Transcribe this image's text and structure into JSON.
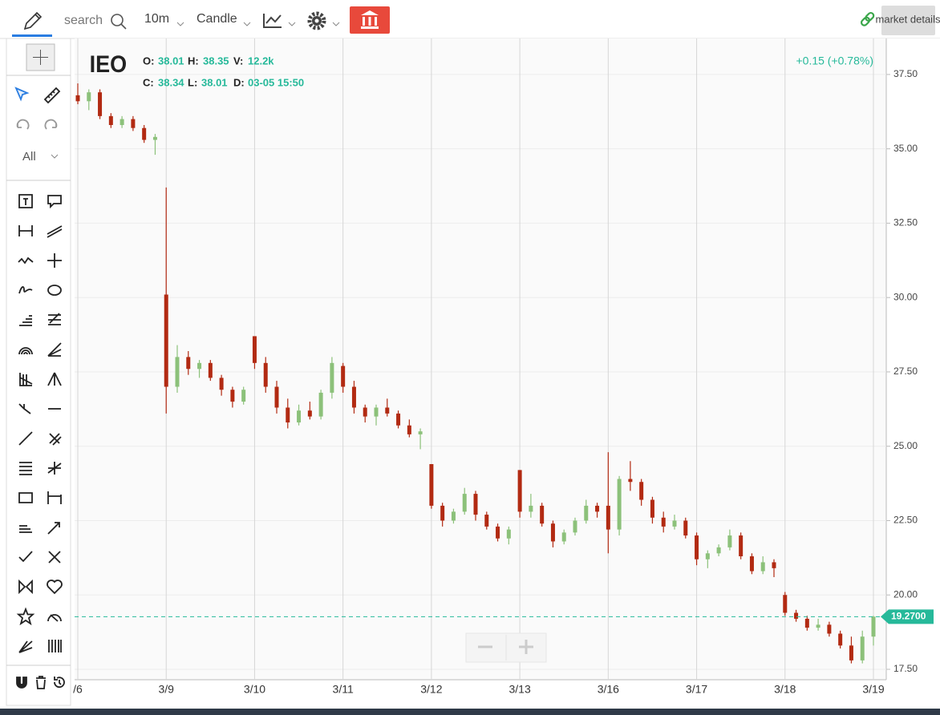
{
  "toolbar": {
    "search": "search",
    "interval": "10m",
    "chart_style": "Candle",
    "market_details": "market details"
  },
  "sidebar": {
    "filter": "All"
  },
  "chart_data": {
    "type": "candlestick",
    "symbol": "IEO",
    "header": [
      {
        "key": "O:",
        "value": "38.01"
      },
      {
        "key": "H:",
        "value": "38.35"
      },
      {
        "key": "V:",
        "value": "12.2k"
      },
      {
        "key": "C:",
        "value": "38.34"
      },
      {
        "key": "L:",
        "value": "38.01"
      },
      {
        "key": "D:",
        "value": "03-05 15:50"
      }
    ],
    "change_label": "+0.15 (+0.78%)",
    "last_price": {
      "value": 19.27,
      "label": "19.2700"
    },
    "up_color": "#8cc17a",
    "down_color": "#b22a12",
    "last_color": "#26b99a",
    "categories": [
      "/6",
      null,
      null,
      null,
      null,
      null,
      null,
      null,
      "3/9",
      null,
      null,
      null,
      null,
      null,
      null,
      null,
      "3/10",
      null,
      null,
      null,
      null,
      null,
      null,
      null,
      "3/11",
      null,
      null,
      null,
      null,
      null,
      null,
      null,
      "3/12",
      null,
      null,
      null,
      null,
      null,
      null,
      null,
      "3/13",
      null,
      null,
      null,
      null,
      null,
      null,
      null,
      "3/16",
      null,
      null,
      null,
      null,
      null,
      null,
      null,
      "3/17",
      null,
      null,
      null,
      null,
      null,
      null,
      null,
      "3/18",
      null,
      null,
      null,
      null,
      null,
      null,
      null,
      "3/19"
    ],
    "open": [
      36.8,
      36.6,
      36.9,
      36.1,
      35.8,
      36.0,
      35.7,
      35.3,
      30.1,
      27.0,
      28.0,
      27.6,
      27.8,
      27.3,
      26.9,
      26.5,
      28.7,
      27.8,
      27.0,
      26.3,
      25.8,
      26.2,
      26.0,
      26.8,
      27.7,
      27.0,
      26.3,
      26.0,
      26.3,
      26.1,
      25.7,
      25.4,
      24.4,
      23.0,
      22.5,
      22.8,
      23.4,
      22.7,
      22.3,
      21.9,
      24.2,
      22.8,
      23.0,
      22.4,
      21.8,
      22.1,
      22.5,
      23.0,
      23.0,
      22.2,
      23.9,
      23.8,
      23.2,
      22.6,
      22.3,
      22.5,
      22.0,
      21.2,
      21.4,
      21.6,
      22.0,
      21.3,
      20.8,
      21.1,
      20.0,
      19.4,
      19.2,
      18.9,
      19.0,
      18.7,
      18.3,
      17.8,
      18.6
    ],
    "high": [
      37.2,
      37.0,
      37.0,
      36.2,
      36.1,
      36.1,
      35.8,
      35.5,
      33.7,
      28.4,
      28.2,
      27.9,
      27.9,
      27.4,
      27.0,
      27.0,
      28.7,
      28.0,
      27.2,
      26.6,
      26.4,
      26.5,
      26.9,
      28.0,
      27.8,
      27.2,
      26.4,
      26.4,
      26.6,
      26.2,
      25.9,
      25.6,
      24.4,
      23.1,
      22.9,
      23.6,
      23.5,
      22.8,
      22.4,
      22.3,
      24.2,
      23.4,
      23.1,
      22.5,
      22.2,
      22.6,
      23.2,
      23.1,
      24.8,
      24.0,
      24.5,
      23.9,
      23.3,
      22.8,
      22.7,
      22.6,
      22.1,
      21.5,
      21.7,
      22.2,
      22.1,
      21.4,
      21.3,
      21.2,
      20.1,
      19.5,
      19.3,
      19.2,
      19.1,
      18.8,
      18.6,
      18.8,
      19.3
    ],
    "low": [
      36.5,
      36.3,
      36.0,
      35.7,
      35.7,
      35.6,
      35.2,
      34.8,
      26.1,
      26.8,
      27.4,
      27.3,
      27.2,
      26.7,
      26.3,
      26.4,
      27.6,
      26.8,
      26.1,
      25.6,
      25.7,
      25.9,
      25.9,
      26.6,
      26.8,
      26.1,
      25.8,
      25.7,
      26.0,
      25.6,
      25.3,
      24.9,
      22.9,
      22.3,
      22.4,
      22.7,
      22.5,
      22.2,
      21.8,
      21.7,
      22.6,
      22.6,
      22.3,
      21.6,
      21.7,
      22.0,
      22.4,
      22.6,
      21.4,
      22.0,
      23.5,
      23.0,
      22.4,
      22.1,
      22.2,
      21.9,
      21.0,
      20.9,
      21.3,
      21.5,
      21.2,
      20.7,
      20.7,
      20.6,
      19.3,
      19.1,
      18.8,
      18.8,
      18.6,
      18.2,
      17.7,
      17.7,
      18.3
    ],
    "close": [
      36.6,
      36.9,
      36.1,
      35.8,
      36.0,
      35.7,
      35.3,
      35.4,
      27.0,
      28.0,
      27.6,
      27.8,
      27.3,
      26.9,
      26.5,
      26.9,
      27.8,
      27.0,
      26.3,
      25.8,
      26.2,
      26.0,
      26.8,
      27.8,
      27.0,
      26.3,
      26.0,
      26.3,
      26.1,
      25.7,
      25.4,
      25.5,
      23.0,
      22.5,
      22.8,
      23.4,
      22.7,
      22.3,
      21.9,
      22.2,
      22.8,
      23.0,
      22.4,
      21.8,
      22.1,
      22.5,
      23.0,
      22.8,
      22.2,
      23.9,
      23.8,
      23.2,
      22.6,
      22.3,
      22.5,
      22.0,
      21.2,
      21.4,
      21.6,
      22.0,
      21.3,
      20.8,
      21.1,
      20.9,
      19.4,
      19.2,
      18.9,
      19.0,
      18.7,
      18.3,
      17.8,
      18.6,
      19.27
    ],
    "ylim": [
      17.15,
      38.71
    ],
    "yticks": [
      {
        "value": 17.5,
        "label": "17.50"
      },
      {
        "value": 20,
        "label": "20.00"
      },
      {
        "value": 22.5,
        "label": "22.50"
      },
      {
        "value": 25,
        "label": "25.00"
      },
      {
        "value": 27.5,
        "label": "27.50"
      },
      {
        "value": 30,
        "label": "30.00"
      },
      {
        "value": 32.5,
        "label": "32.50"
      },
      {
        "value": 35,
        "label": "35.00"
      },
      {
        "value": 37.5,
        "label": "37.50"
      }
    ],
    "grid": true
  }
}
